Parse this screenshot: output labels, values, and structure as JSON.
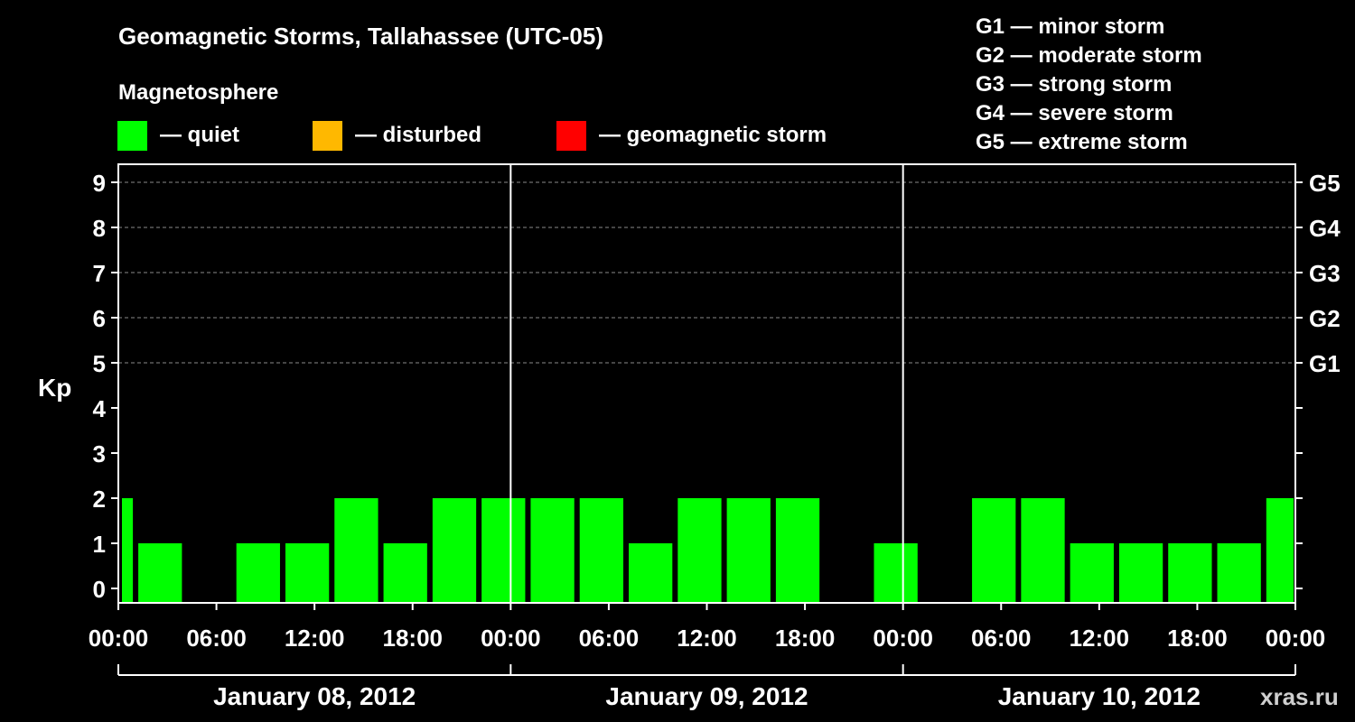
{
  "chart_data": {
    "type": "bar",
    "title": "Geomagnetic Storms, Tallahassee (UTC-05)",
    "ylabel": "Kp",
    "ylim": [
      0,
      9
    ],
    "yticks": [
      "0",
      "1",
      "2",
      "3",
      "4",
      "5",
      "6",
      "7",
      "8",
      "9"
    ],
    "storm_levels": [
      {
        "label": "G1",
        "kp": 5
      },
      {
        "label": "G2",
        "kp": 6
      },
      {
        "label": "G3",
        "kp": 7
      },
      {
        "label": "G4",
        "kp": 8
      },
      {
        "label": "G5",
        "kp": 9
      }
    ],
    "storm_scale": [
      {
        "label": "G1 — minor storm"
      },
      {
        "label": "G2 — moderate storm"
      },
      {
        "label": "G3 — strong storm"
      },
      {
        "label": "G4 — severe storm"
      },
      {
        "label": "G5 — extreme storm"
      }
    ],
    "legend": {
      "title": "Magnetosphere",
      "items": [
        {
          "label": "— quiet",
          "color": "#00ff00"
        },
        {
          "label": "— disturbed",
          "color": "#ffb800"
        },
        {
          "label": "— geomagnetic storm",
          "color": "#ff0000"
        }
      ]
    },
    "x_range_hours": [
      0,
      72
    ],
    "x_tick_labels": [
      "00:00",
      "06:00",
      "12:00",
      "18:00",
      "00:00",
      "06:00",
      "12:00",
      "18:00",
      "00:00",
      "06:00",
      "12:00",
      "18:00",
      "00:00"
    ],
    "days": [
      "January 08, 2012",
      "January 09, 2012",
      "January 10, 2012"
    ],
    "bar_color": "#00ff00",
    "bars": [
      {
        "start": 0,
        "end": 1,
        "kp": 2
      },
      {
        "start": 1,
        "end": 4,
        "kp": 1
      },
      {
        "start": 4,
        "end": 7,
        "kp": 0
      },
      {
        "start": 7,
        "end": 10,
        "kp": 1
      },
      {
        "start": 10,
        "end": 13,
        "kp": 1
      },
      {
        "start": 13,
        "end": 16,
        "kp": 2
      },
      {
        "start": 16,
        "end": 19,
        "kp": 1
      },
      {
        "start": 19,
        "end": 22,
        "kp": 2
      },
      {
        "start": 22,
        "end": 25,
        "kp": 2
      },
      {
        "start": 25,
        "end": 28,
        "kp": 2
      },
      {
        "start": 28,
        "end": 31,
        "kp": 2
      },
      {
        "start": 31,
        "end": 34,
        "kp": 1
      },
      {
        "start": 34,
        "end": 37,
        "kp": 2
      },
      {
        "start": 37,
        "end": 40,
        "kp": 2
      },
      {
        "start": 40,
        "end": 43,
        "kp": 2
      },
      {
        "start": 43,
        "end": 46,
        "kp": 0
      },
      {
        "start": 46,
        "end": 49,
        "kp": 1
      },
      {
        "start": 49,
        "end": 52,
        "kp": 0
      },
      {
        "start": 52,
        "end": 55,
        "kp": 2
      },
      {
        "start": 55,
        "end": 58,
        "kp": 2
      },
      {
        "start": 58,
        "end": 61,
        "kp": 1
      },
      {
        "start": 61,
        "end": 64,
        "kp": 1
      },
      {
        "start": 64,
        "end": 67,
        "kp": 1
      },
      {
        "start": 67,
        "end": 70,
        "kp": 1
      },
      {
        "start": 70,
        "end": 72,
        "kp": 2
      }
    ]
  },
  "watermark": "xras.ru"
}
